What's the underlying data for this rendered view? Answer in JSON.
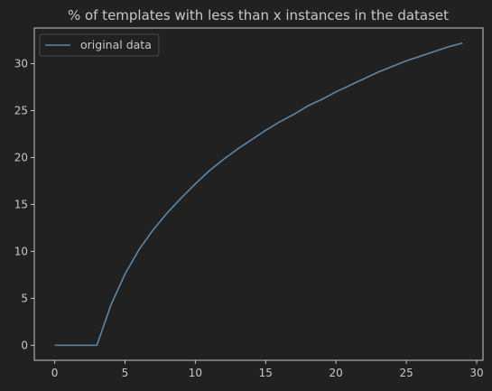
{
  "chart_data": {
    "type": "line",
    "title": "% of templates with less than x instances in the dataset",
    "xlabel": "",
    "ylabel": "",
    "xlim": [
      -1.45,
      30.45
    ],
    "ylim": [
      -1.6,
      33.8
    ],
    "xticks": [
      0,
      5,
      10,
      15,
      20,
      25,
      30
    ],
    "yticks": [
      0,
      5,
      10,
      15,
      20,
      25,
      30
    ],
    "grid": false,
    "legend_position": "top-left",
    "series": [
      {
        "name": "original data",
        "color": "#5f86a6",
        "x": [
          0,
          1,
          2,
          3,
          4,
          5,
          6,
          7,
          8,
          9,
          10,
          11,
          12,
          13,
          14,
          15,
          16,
          17,
          18,
          19,
          20,
          21,
          22,
          23,
          24,
          25,
          26,
          27,
          28,
          29
        ],
        "y": [
          0,
          0,
          0,
          0,
          4.3,
          7.6,
          10.2,
          12.3,
          14.1,
          15.7,
          17.2,
          18.6,
          19.8,
          20.9,
          21.9,
          22.9,
          23.8,
          24.6,
          25.5,
          26.2,
          27.0,
          27.7,
          28.4,
          29.1,
          29.7,
          30.3,
          30.8,
          31.3,
          31.8,
          32.2
        ]
      }
    ]
  },
  "colors": {
    "background": "#212121",
    "axes": "#c8c8c8",
    "legend_border": "#4a4a4a"
  }
}
